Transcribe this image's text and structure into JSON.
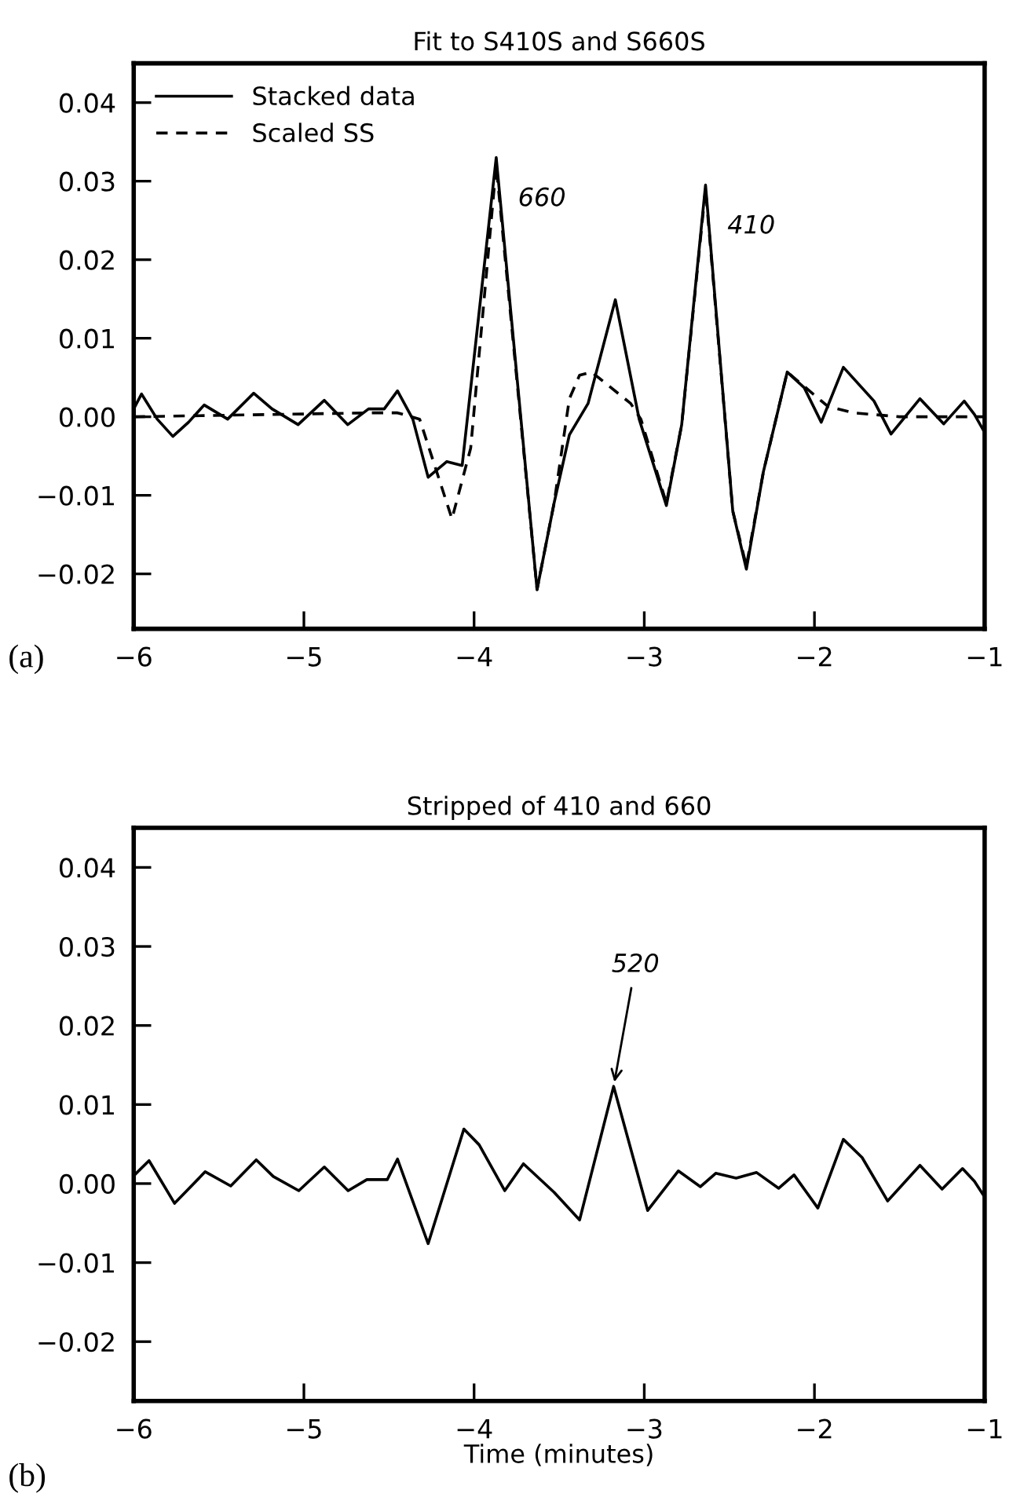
{
  "chart_data": [
    {
      "type": "line",
      "title": "Fit to S410S and S660S",
      "xlim": [
        -6,
        -1
      ],
      "ylim": [
        -0.027,
        0.045
      ],
      "xticks": [
        {
          "value": -6,
          "label": "−6"
        },
        {
          "value": -5,
          "label": "−5"
        },
        {
          "value": -4,
          "label": "−4"
        },
        {
          "value": -3,
          "label": "−3"
        },
        {
          "value": -2,
          "label": "−2"
        },
        {
          "value": -1,
          "label": "−1"
        }
      ],
      "yticks": [
        {
          "value": -0.02,
          "label": "−0.02"
        },
        {
          "value": -0.01,
          "label": "−0.01"
        },
        {
          "value": 0.0,
          "label": "0.00"
        },
        {
          "value": 0.01,
          "label": "0.01"
        },
        {
          "value": 0.02,
          "label": "0.02"
        },
        {
          "value": 0.03,
          "label": "0.03"
        },
        {
          "value": 0.04,
          "label": "0.04"
        }
      ],
      "legend": "top left",
      "grid": false,
      "series": [
        {
          "name": "Stacked data",
          "color": "#000000",
          "line_style": "solid",
          "x": [
            -6.0,
            -5.954,
            -5.862,
            -5.77,
            -5.678,
            -5.586,
            -5.448,
            -5.295,
            -5.187,
            -5.034,
            -4.88,
            -4.742,
            -4.62,
            -4.528,
            -4.45,
            -4.36,
            -4.27,
            -4.16,
            -4.07,
            -3.87,
            -3.63,
            -3.53,
            -3.44,
            -3.33,
            -3.17,
            -3.03,
            -2.87,
            -2.78,
            -2.64,
            -2.48,
            -2.4,
            -2.3,
            -2.16,
            -2.06,
            -1.96,
            -1.83,
            -1.65,
            -1.55,
            -1.38,
            -1.24,
            -1.12,
            -1.06,
            -1.0
          ],
          "values": [
            0.001,
            0.0029,
            -0.0003,
            -0.0025,
            -0.0007,
            0.0015,
            -0.0003,
            0.003,
            0.001,
            -0.001,
            0.0021,
            -0.001,
            0.001,
            0.001,
            0.0033,
            -0.0003,
            -0.0077,
            -0.0057,
            -0.0062,
            0.033,
            -0.022,
            -0.011,
            -0.0023,
            0.0017,
            0.0149,
            -0.0003,
            -0.0113,
            -0.001,
            0.0295,
            -0.012,
            -0.0194,
            -0.007,
            0.0057,
            0.0037,
            -0.0007,
            0.0063,
            0.002,
            -0.0022,
            0.0023,
            -0.0009,
            0.002,
            0.0003,
            -0.002
          ]
        },
        {
          "name": "Scaled SS",
          "color": "#000000",
          "line_style": "dashed",
          "x": [
            -6.0,
            -4.6,
            -4.45,
            -4.32,
            -4.23,
            -4.13,
            -4.02,
            -3.87,
            -3.63,
            -3.53,
            -3.44,
            -3.38,
            -3.31,
            -3.08,
            -3.02,
            -2.87,
            -2.78,
            -2.64,
            -2.48,
            -2.4,
            -2.3,
            -2.16,
            -1.92,
            -1.77,
            -1.5,
            -1.0
          ],
          "values": [
            0.0,
            0.0005,
            0.0005,
            -0.0003,
            -0.0063,
            -0.013,
            -0.004,
            0.032,
            -0.022,
            -0.011,
            0.0023,
            0.0053,
            0.0057,
            0.0017,
            -0.0003,
            -0.011,
            -0.001,
            0.029,
            -0.012,
            -0.019,
            -0.007,
            0.0057,
            0.0013,
            0.0005,
            0.0,
            0.0
          ]
        }
      ],
      "annotations": [
        {
          "text": "660",
          "x": -3.87,
          "y": 0.033
        },
        {
          "text": "410",
          "x": -2.64,
          "y": 0.0295
        },
        "(a)"
      ]
    },
    {
      "type": "line",
      "title": "Stripped of 410 and 660",
      "xlabel": "Time (minutes)",
      "xlim": [
        -6,
        -1
      ],
      "ylim": [
        -0.0275,
        0.045
      ],
      "xticks": [
        {
          "value": -6,
          "label": "−6"
        },
        {
          "value": -5,
          "label": "−5"
        },
        {
          "value": -4,
          "label": "−4"
        },
        {
          "value": -3,
          "label": "−3"
        },
        {
          "value": -2,
          "label": "−2"
        },
        {
          "value": -1,
          "label": "−1"
        }
      ],
      "yticks": [
        {
          "value": -0.02,
          "label": "−0.02"
        },
        {
          "value": -0.01,
          "label": "−0.01"
        },
        {
          "value": 0.0,
          "label": "0.00"
        },
        {
          "value": 0.01,
          "label": "0.01"
        },
        {
          "value": 0.02,
          "label": "0.02"
        },
        {
          "value": 0.03,
          "label": "0.03"
        },
        {
          "value": 0.04,
          "label": "0.04"
        }
      ],
      "grid": false,
      "series": [
        {
          "color": "#000000",
          "line_style": "solid",
          "x": [
            -5.99,
            -5.91,
            -5.76,
            -5.58,
            -5.43,
            -5.28,
            -5.18,
            -5.03,
            -4.88,
            -4.74,
            -4.63,
            -4.51,
            -4.45,
            -4.27,
            -4.06,
            -3.97,
            -3.82,
            -3.71,
            -3.53,
            -3.38,
            -3.18,
            -2.98,
            -2.8,
            -2.67,
            -2.58,
            -2.46,
            -2.34,
            -2.21,
            -2.12,
            -1.98,
            -1.83,
            -1.72,
            -1.57,
            -1.38,
            -1.25,
            -1.13,
            -1.06,
            -1.0
          ],
          "values": [
            0.0012,
            0.0029,
            -0.0025,
            0.0015,
            -0.0003,
            0.003,
            0.0009,
            -0.0009,
            0.0021,
            -0.0009,
            0.0005,
            0.0005,
            0.0031,
            -0.0076,
            0.0069,
            0.0049,
            -0.0009,
            0.0025,
            -0.0011,
            -0.0046,
            0.0123,
            -0.0034,
            0.0016,
            -0.0004,
            0.0013,
            0.0007,
            0.0014,
            -0.0006,
            0.0011,
            -0.0031,
            0.0056,
            0.0033,
            -0.0022,
            0.0023,
            -0.0007,
            0.0019,
            0.0003,
            -0.0017
          ]
        }
      ],
      "annotations": [
        {
          "text": "520",
          "x": -3.18,
          "y": 0.0123
        },
        "(b)"
      ]
    }
  ]
}
